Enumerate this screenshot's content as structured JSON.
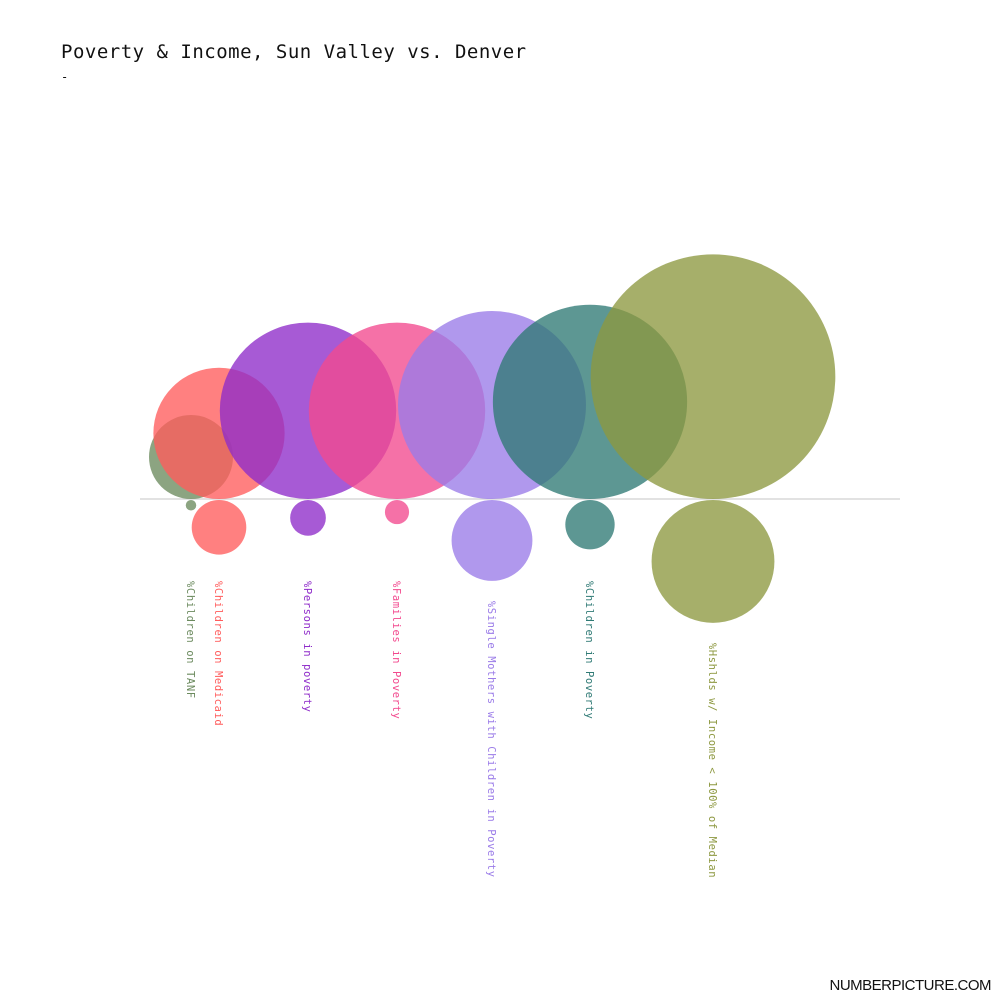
{
  "title": "Poverty & Income, Sun Valley vs. Denver",
  "subtitle": "-",
  "brand": "NUMBERPICTURE.COM",
  "chart_data": {
    "type": "bubble",
    "legend": "none",
    "top_group": "Sun Valley",
    "bottom_group": "Denver",
    "series": [
      {
        "label": "%Children on TANF",
        "color": "#6b8a5e",
        "top": 8,
        "bottom": 1
      },
      {
        "label": "%Children on Medicaid",
        "color": "#ff5c5c",
        "top": 12.5,
        "bottom": 5.2
      },
      {
        "label": "%Persons in poverty",
        "color": "#8e2bc9",
        "top": 16.8,
        "bottom": 3.4
      },
      {
        "label": "%Families in Poverty",
        "color": "#f2498e",
        "top": 16.8,
        "bottom": 2.3
      },
      {
        "label": "%Single Mothers with Children in Poverty",
        "color": "#9a7be8",
        "top": 17.9,
        "bottom": 7.7
      },
      {
        "label": "%Children in Poverty",
        "color": "#2f7a75",
        "top": 18.5,
        "bottom": 4.7
      },
      {
        "label": "%Hshlds w/ Income < 100% of Median",
        "color": "#8d9840",
        "top": 23.3,
        "bottom": 11.7
      }
    ]
  }
}
